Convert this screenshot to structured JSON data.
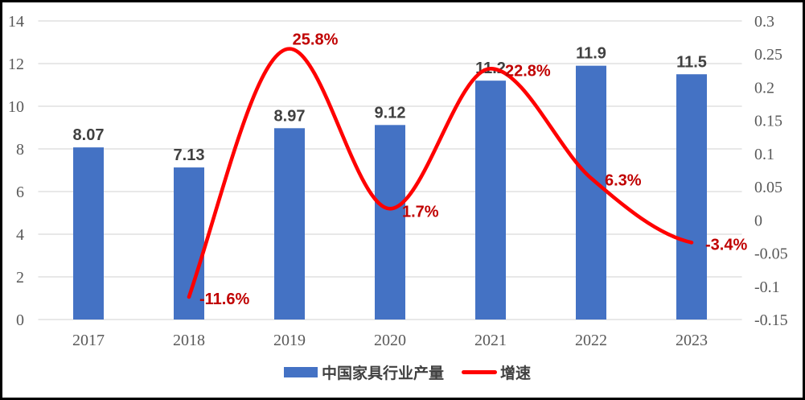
{
  "chart_data": {
    "type": "bar+line",
    "title": "",
    "categories": [
      "2017",
      "2018",
      "2019",
      "2020",
      "2021",
      "2022",
      "2023"
    ],
    "series": [
      {
        "name": "中国家具行业产量",
        "type": "bar",
        "axis": "left",
        "values": [
          8.07,
          7.13,
          8.97,
          9.12,
          11.2,
          11.9,
          11.5
        ],
        "labels": [
          "8.07",
          "7.13",
          "8.97",
          "9.12",
          "11.2",
          "11.9",
          "11.5"
        ],
        "color": "#4472C4"
      },
      {
        "name": "增速",
        "type": "line",
        "axis": "right",
        "smooth": true,
        "values": [
          null,
          -0.116,
          0.258,
          0.017,
          0.228,
          0.063,
          -0.034
        ],
        "labels": [
          "",
          "-11.6%",
          "25.8%",
          "1.7%",
          "22.8%",
          "6.3%",
          "-3.4%"
        ],
        "color": "#FF0000",
        "label_color": "#C00000"
      }
    ],
    "left_axis": {
      "min": 0,
      "max": 14,
      "step": 2,
      "ticks": [
        "14",
        "12",
        "10",
        "8",
        "6",
        "4",
        "2",
        "0"
      ]
    },
    "right_axis": {
      "min": -0.15,
      "max": 0.3,
      "step": 0.05,
      "ticks": [
        "0.3",
        "0.25",
        "0.2",
        "0.15",
        "0.1",
        "0.05",
        "0",
        "-0.05",
        "-0.1",
        "-0.15"
      ]
    },
    "grid": true,
    "gridline_color": "#D9D9D9",
    "legend_position": "bottom",
    "frame_color": "#000000",
    "text_colors": {
      "bar_values": "#404040",
      "axis_ticks": "#595959",
      "line_values": "#C00000"
    }
  }
}
